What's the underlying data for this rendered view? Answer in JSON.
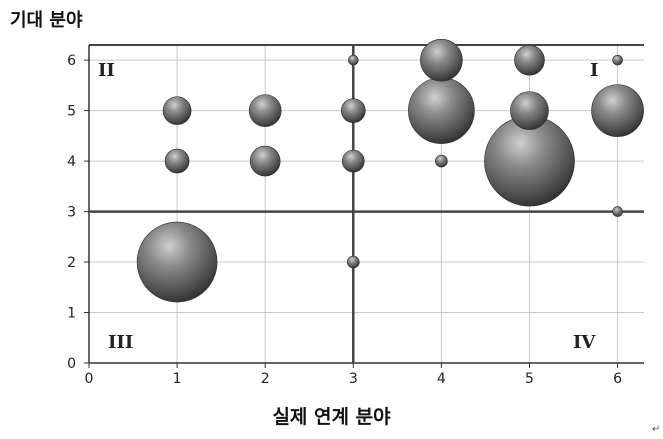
{
  "chart_data": {
    "type": "scatter",
    "title": "",
    "xlabel": "실제 연계 분야",
    "ylabel": "기대 분야",
    "xlim": [
      0,
      6.3
    ],
    "ylim": [
      0,
      6.3
    ],
    "x_ticks": [
      "0",
      "1",
      "2",
      "3",
      "4",
      "5",
      "6"
    ],
    "y_ticks": [
      "0",
      "1",
      "2",
      "3",
      "4",
      "5",
      "6"
    ],
    "grid": true,
    "quadrant_lines": {
      "x": 3,
      "y": 3
    },
    "quadrant_labels": {
      "q1": "I",
      "q2": "II",
      "q3": "III",
      "q4": "IV"
    },
    "points": [
      {
        "x": 1,
        "y": 2,
        "size": 40
      },
      {
        "x": 1,
        "y": 4,
        "size": 12
      },
      {
        "x": 1,
        "y": 5,
        "size": 14
      },
      {
        "x": 2,
        "y": 4,
        "size": 15
      },
      {
        "x": 2,
        "y": 5,
        "size": 16
      },
      {
        "x": 3,
        "y": 2,
        "size": 6
      },
      {
        "x": 3,
        "y": 4,
        "size": 11
      },
      {
        "x": 3,
        "y": 5,
        "size": 12
      },
      {
        "x": 3,
        "y": 6,
        "size": 5
      },
      {
        "x": 4,
        "y": 4,
        "size": 6
      },
      {
        "x": 4,
        "y": 5,
        "size": 33
      },
      {
        "x": 4,
        "y": 6,
        "size": 21
      },
      {
        "x": 5,
        "y": 4,
        "size": 45
      },
      {
        "x": 5,
        "y": 5,
        "size": 19
      },
      {
        "x": 5,
        "y": 6,
        "size": 15
      },
      {
        "x": 6,
        "y": 3,
        "size": 5
      },
      {
        "x": 6,
        "y": 5,
        "size": 26
      },
      {
        "x": 6,
        "y": 6,
        "size": 5
      }
    ]
  },
  "decor": {
    "mark": "↵"
  }
}
